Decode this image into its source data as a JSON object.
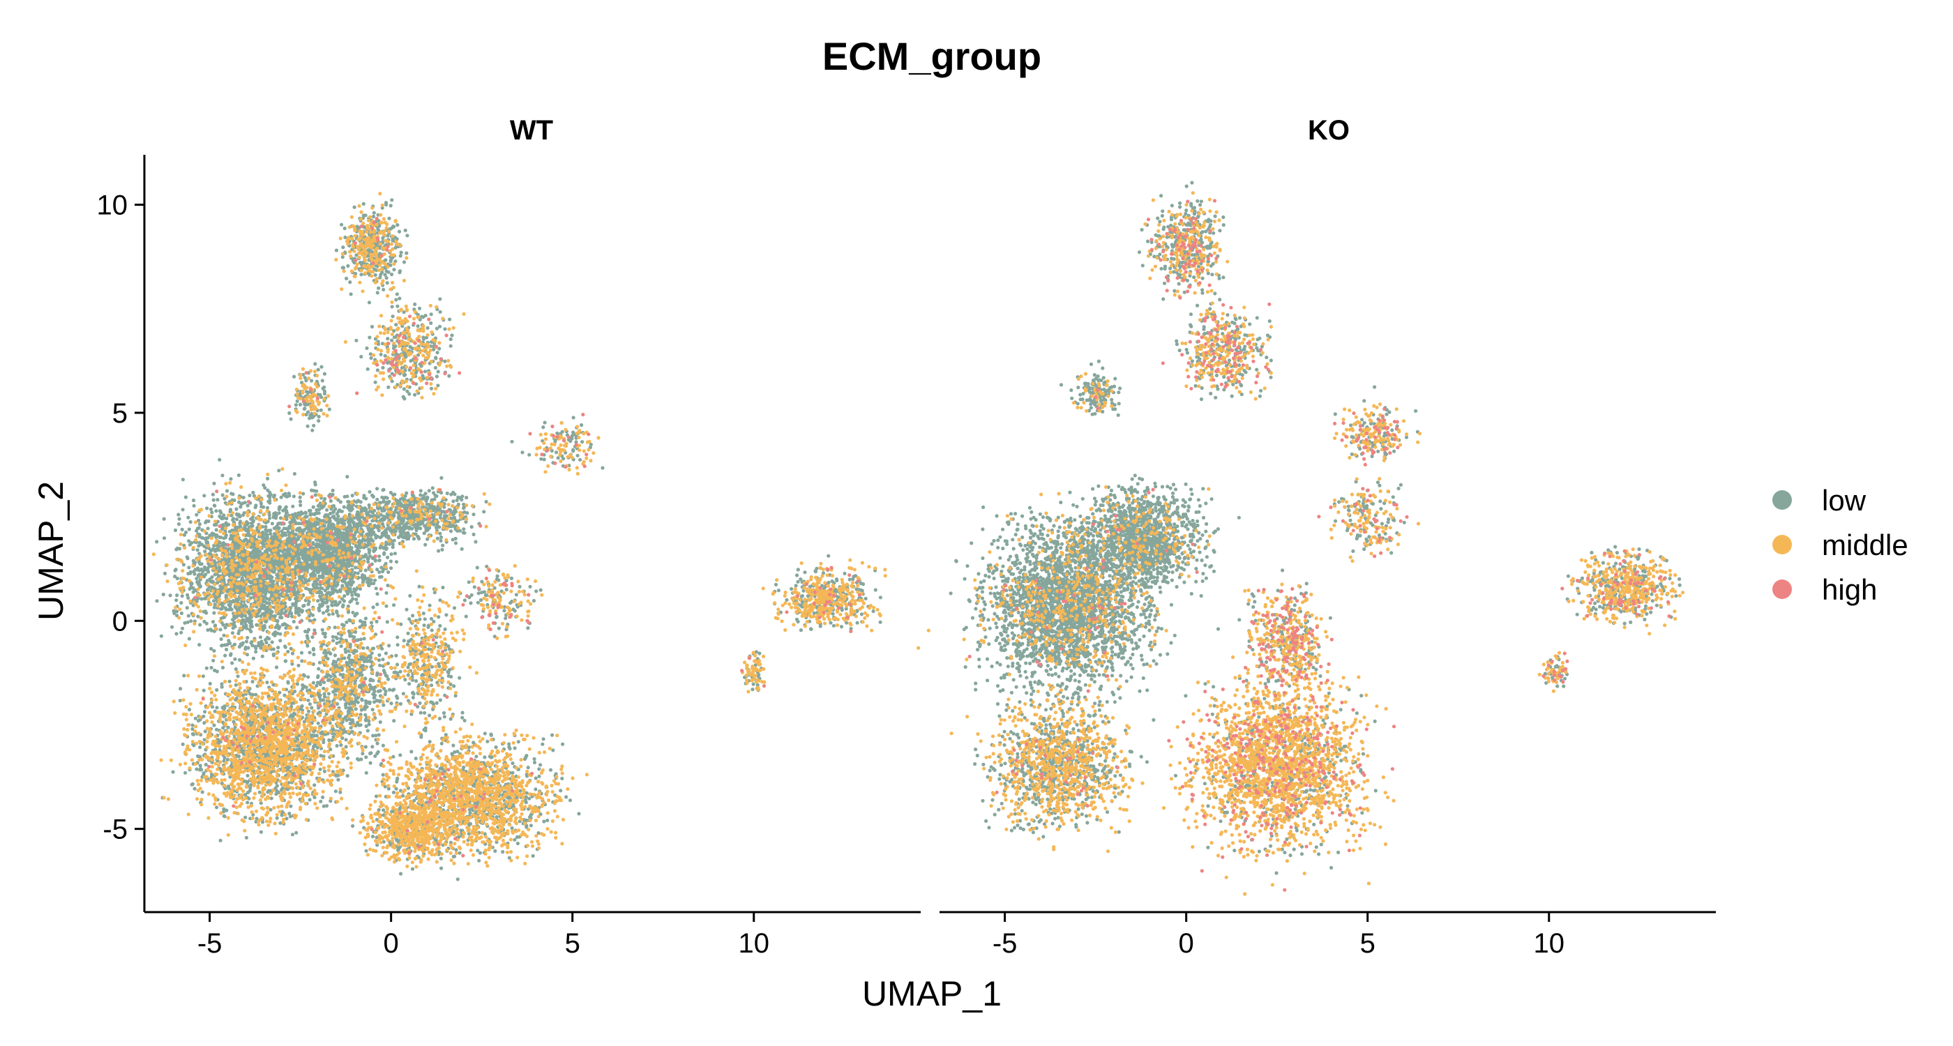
{
  "chart_data": {
    "type": "scatter",
    "title": "ECM_group",
    "xlabel": "UMAP_1",
    "ylabel": "UMAP_2",
    "xlim": [
      -6.8,
      14.6
    ],
    "ylim": [
      -7.0,
      11.2
    ],
    "x_ticks": [
      -5,
      0,
      5,
      10
    ],
    "y_ticks": [
      -5,
      0,
      5,
      10
    ],
    "x_tick_labels": [
      "-5",
      "0",
      "5",
      "10"
    ],
    "y_tick_labels": [
      "-5",
      "0",
      "5",
      "10"
    ],
    "grid": false,
    "legend_position": "right",
    "legend": [
      {
        "key": "low",
        "label": "low",
        "color": "#86A69C"
      },
      {
        "key": "middle",
        "label": "middle",
        "color": "#F5B756"
      },
      {
        "key": "high",
        "label": "high",
        "color": "#EE8383"
      }
    ],
    "facets": [
      {
        "label": "WT",
        "clusters": [
          {
            "cx": -3.8,
            "cy": 1.2,
            "rx": 1.9,
            "ry": 1.7,
            "n": 2600,
            "mix": [
              0.82,
              0.17,
              0.01
            ]
          },
          {
            "cx": -1.6,
            "cy": 1.7,
            "rx": 1.4,
            "ry": 1.2,
            "n": 1400,
            "mix": [
              0.88,
              0.11,
              0.01
            ]
          },
          {
            "cx": 0.6,
            "cy": 2.5,
            "rx": 1.6,
            "ry": 0.6,
            "n": 700,
            "mix": [
              0.85,
              0.14,
              0.01
            ]
          },
          {
            "cx": -3.5,
            "cy": -3.0,
            "rx": 1.9,
            "ry": 1.6,
            "n": 2200,
            "mix": [
              0.42,
              0.57,
              0.01
            ]
          },
          {
            "cx": -1.2,
            "cy": -1.5,
            "rx": 1.2,
            "ry": 1.6,
            "n": 800,
            "mix": [
              0.7,
              0.29,
              0.01
            ]
          },
          {
            "cx": 2.2,
            "cy": -4.2,
            "rx": 2.2,
            "ry": 1.3,
            "n": 1800,
            "mix": [
              0.35,
              0.64,
              0.01
            ]
          },
          {
            "cx": 0.5,
            "cy": -5.0,
            "rx": 1.2,
            "ry": 0.7,
            "n": 600,
            "mix": [
              0.3,
              0.69,
              0.01
            ]
          },
          {
            "cx": 1.0,
            "cy": -1.0,
            "rx": 0.9,
            "ry": 1.6,
            "n": 400,
            "mix": [
              0.5,
              0.49,
              0.01
            ]
          },
          {
            "cx": -0.5,
            "cy": 9.0,
            "rx": 0.8,
            "ry": 0.9,
            "n": 500,
            "mix": [
              0.6,
              0.37,
              0.03
            ]
          },
          {
            "cx": 0.5,
            "cy": 6.5,
            "rx": 1.1,
            "ry": 1.0,
            "n": 450,
            "mix": [
              0.5,
              0.4,
              0.1
            ]
          },
          {
            "cx": -2.3,
            "cy": 5.4,
            "rx": 0.5,
            "ry": 0.6,
            "n": 150,
            "mix": [
              0.6,
              0.38,
              0.02
            ]
          },
          {
            "cx": 4.8,
            "cy": 4.2,
            "rx": 0.9,
            "ry": 0.6,
            "n": 140,
            "mix": [
              0.4,
              0.5,
              0.1
            ]
          },
          {
            "cx": 3.0,
            "cy": 0.5,
            "rx": 1.0,
            "ry": 0.8,
            "n": 180,
            "mix": [
              0.4,
              0.45,
              0.15
            ]
          },
          {
            "cx": 12.0,
            "cy": 0.5,
            "rx": 1.3,
            "ry": 0.7,
            "n": 550,
            "mix": [
              0.4,
              0.55,
              0.05
            ]
          },
          {
            "cx": 10.0,
            "cy": -1.2,
            "rx": 0.3,
            "ry": 0.4,
            "n": 80,
            "mix": [
              0.3,
              0.6,
              0.1
            ]
          }
        ]
      },
      {
        "label": "KO",
        "clusters": [
          {
            "cx": -3.3,
            "cy": 0.4,
            "rx": 2.2,
            "ry": 1.9,
            "n": 2900,
            "mix": [
              0.86,
              0.13,
              0.01
            ]
          },
          {
            "cx": -1.2,
            "cy": 2.0,
            "rx": 1.6,
            "ry": 1.1,
            "n": 1300,
            "mix": [
              0.88,
              0.11,
              0.01
            ]
          },
          {
            "cx": -3.5,
            "cy": -3.5,
            "rx": 1.7,
            "ry": 1.4,
            "n": 1300,
            "mix": [
              0.45,
              0.53,
              0.02
            ]
          },
          {
            "cx": 2.5,
            "cy": -3.5,
            "rx": 2.2,
            "ry": 1.9,
            "n": 2200,
            "mix": [
              0.18,
              0.7,
              0.12
            ]
          },
          {
            "cx": 2.8,
            "cy": -0.5,
            "rx": 1.0,
            "ry": 1.2,
            "n": 500,
            "mix": [
              0.3,
              0.5,
              0.2
            ]
          },
          {
            "cx": 0.0,
            "cy": 9.0,
            "rx": 0.9,
            "ry": 1.0,
            "n": 500,
            "mix": [
              0.55,
              0.3,
              0.15
            ]
          },
          {
            "cx": 1.0,
            "cy": 6.5,
            "rx": 1.2,
            "ry": 1.0,
            "n": 450,
            "mix": [
              0.45,
              0.4,
              0.15
            ]
          },
          {
            "cx": -2.5,
            "cy": 5.5,
            "rx": 0.6,
            "ry": 0.5,
            "n": 150,
            "mix": [
              0.7,
              0.28,
              0.02
            ]
          },
          {
            "cx": 5.2,
            "cy": 4.5,
            "rx": 1.0,
            "ry": 0.6,
            "n": 220,
            "mix": [
              0.35,
              0.45,
              0.2
            ]
          },
          {
            "cx": 5.0,
            "cy": 2.5,
            "rx": 0.9,
            "ry": 0.9,
            "n": 200,
            "mix": [
              0.4,
              0.45,
              0.15
            ]
          },
          {
            "cx": 12.0,
            "cy": 0.8,
            "rx": 1.3,
            "ry": 0.8,
            "n": 600,
            "mix": [
              0.35,
              0.55,
              0.1
            ]
          },
          {
            "cx": 10.2,
            "cy": -1.2,
            "rx": 0.4,
            "ry": 0.4,
            "n": 80,
            "mix": [
              0.3,
              0.5,
              0.2
            ]
          }
        ]
      }
    ]
  }
}
